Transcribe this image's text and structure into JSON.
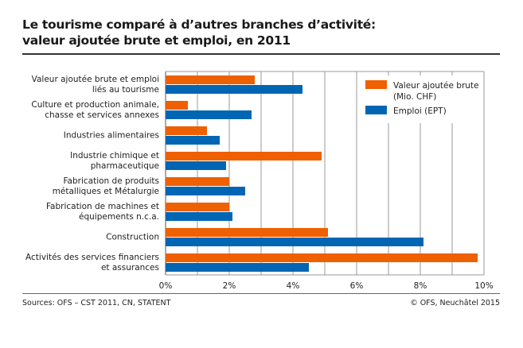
{
  "title_line1": "Le tourisme comparé à d’autres branches d’activité:",
  "title_line2": "valeur ajoutée brute et emploi, en 2011",
  "source": "Sources: OFS – CST 2011, CN, STATENT",
  "copyright": "© OFS, Neuchâtel 2015",
  "chart_data": {
    "type": "bar",
    "orientation": "horizontal",
    "categories": [
      [
        "Valeur ajoutée brute et emploi",
        "liés au tourisme"
      ],
      [
        "Culture et production animale,",
        "chasse et services annexes"
      ],
      [
        "Industries alimentaires"
      ],
      [
        "Industrie chimique et",
        "pharmaceutique"
      ],
      [
        "Fabrication de produits",
        "métalliques et Métalurgie"
      ],
      [
        "Fabrication de machines et",
        "équipements n.c.a."
      ],
      [
        "Construction"
      ],
      [
        "Activités des services financiers",
        "et assurances"
      ]
    ],
    "series": [
      {
        "name": "Valeur ajoutée brute (Mio. CHF)",
        "legend_lines": [
          "Valeur ajoutée brute",
          "(Mio. CHF)"
        ],
        "color": "#ee6000",
        "values": [
          2.8,
          0.7,
          1.3,
          4.9,
          2.0,
          2.0,
          5.1,
          9.8
        ]
      },
      {
        "name": "Emploi (EPT)",
        "legend_lines": [
          "Emploi (EPT)"
        ],
        "color": "#0066b3",
        "values": [
          4.3,
          2.7,
          1.7,
          1.9,
          2.5,
          2.1,
          8.1,
          4.5
        ]
      }
    ],
    "xlim": [
      0,
      10
    ],
    "xticks": [
      "0%",
      "2%",
      "4%",
      "6%",
      "8%",
      "10%"
    ],
    "grid": "vertical, every 1%",
    "legend_position": "top-right"
  }
}
